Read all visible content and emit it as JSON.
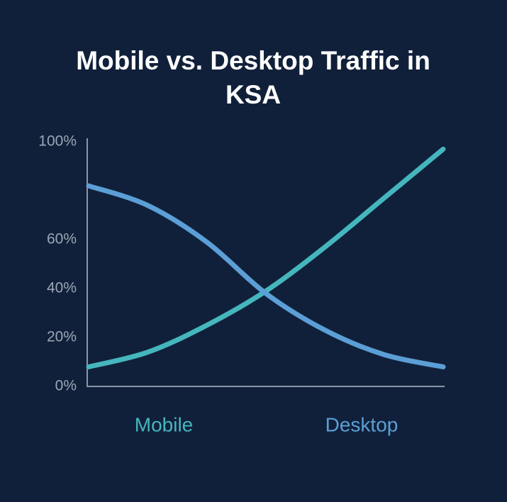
{
  "chart_data": {
    "type": "line",
    "title": "Mobile vs. Desktop Traffic in KSA",
    "categories": [
      null,
      null,
      null,
      null,
      null,
      null,
      null
    ],
    "series": [
      {
        "name": "Mobile",
        "color": "#45b6bd",
        "values": [
          8,
          14,
          25,
          39,
          57,
          77,
          97
        ]
      },
      {
        "name": "Desktop",
        "color": "#5b9fd6",
        "values": [
          82,
          74,
          59,
          38,
          23,
          13,
          8
        ]
      }
    ],
    "ylim": [
      0,
      100
    ],
    "yticks": [
      {
        "value": 0,
        "label": "0%"
      },
      {
        "value": 20,
        "label": "20%"
      },
      {
        "value": 40,
        "label": "40%"
      },
      {
        "value": 60,
        "label": "60%"
      },
      {
        "value": 100,
        "label": "100%"
      }
    ],
    "grid": false
  }
}
